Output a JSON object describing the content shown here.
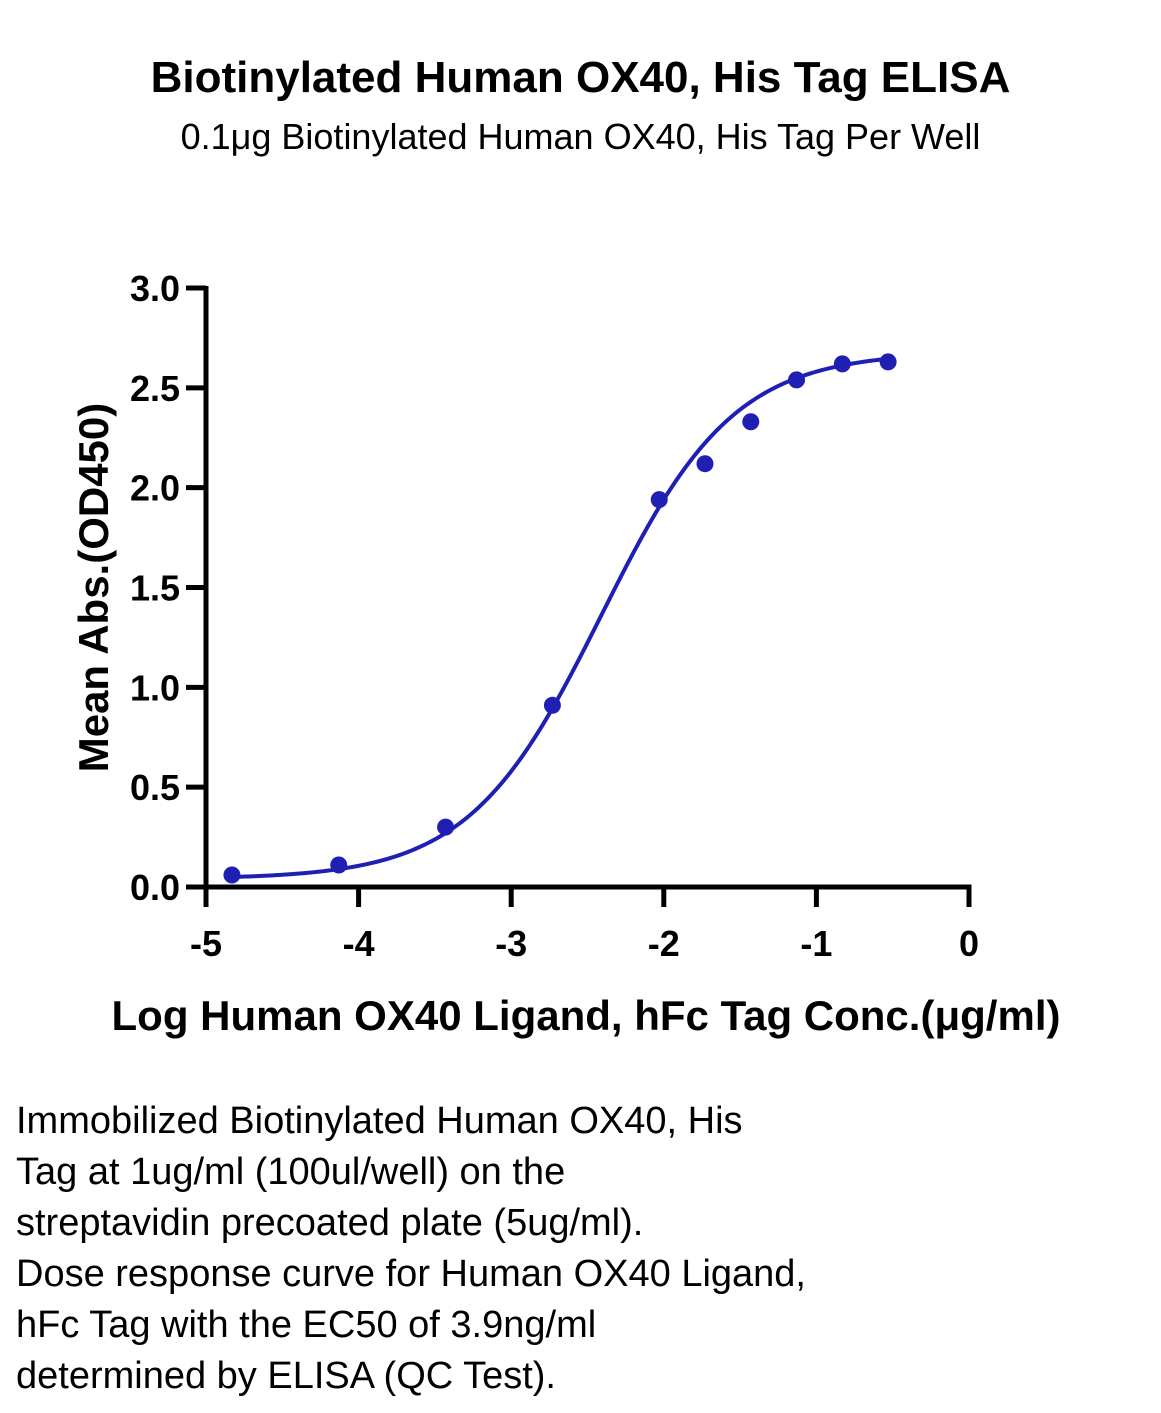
{
  "chart_data": {
    "type": "scatter",
    "title": "Biotinylated Human OX40, His Tag ELISA",
    "subtitle": "0.1μg Biotinylated Human OX40, His Tag Per Well",
    "xlabel": "Log Human OX40 Ligand, hFc Tag Conc.(μg/ml)",
    "ylabel": "Mean Abs.(OD450)",
    "xlim": [
      -5,
      0
    ],
    "ylim": [
      0.0,
      3.0
    ],
    "x_ticks": [
      -5,
      -4,
      -3,
      -2,
      -1,
      0
    ],
    "x_tick_labels": [
      "-5",
      "-4",
      "-3",
      "-2",
      "-1",
      "0"
    ],
    "y_ticks": [
      0.0,
      0.5,
      1.0,
      1.5,
      2.0,
      2.5,
      3.0
    ],
    "y_tick_labels": [
      "0.0",
      "0.5",
      "1.0",
      "1.5",
      "2.0",
      "2.5",
      "3.0"
    ],
    "grid": false,
    "legend": "none",
    "color": "#1f1fb4",
    "series": [
      {
        "points": [
          {
            "x": -4.83,
            "y": 0.06
          },
          {
            "x": -4.13,
            "y": 0.11
          },
          {
            "x": -3.43,
            "y": 0.3
          },
          {
            "x": -2.73,
            "y": 0.91
          },
          {
            "x": -2.03,
            "y": 1.94
          },
          {
            "x": -1.73,
            "y": 2.12
          },
          {
            "x": -1.43,
            "y": 2.33
          },
          {
            "x": -1.13,
            "y": 2.54
          },
          {
            "x": -0.83,
            "y": 2.62
          },
          {
            "x": -0.53,
            "y": 2.63
          }
        ],
        "fit": {
          "model": "4PL",
          "bottom": 0.04,
          "top": 2.68,
          "log_ec50": -2.41,
          "hill_slope": 1.0,
          "x_range": [
            -4.83,
            -0.53
          ]
        }
      }
    ]
  },
  "caption": {
    "lines": [
      "Immobilized Biotinylated Human OX40, His",
      "Tag at 1ug/ml (100ul/well) on the",
      "streptavidin precoated plate (5ug/ml).",
      "Dose response curve for Human OX40 Ligand,",
      "hFc Tag with the EC50 of 3.9ng/ml",
      "determined by ELISA (QC Test)."
    ]
  }
}
